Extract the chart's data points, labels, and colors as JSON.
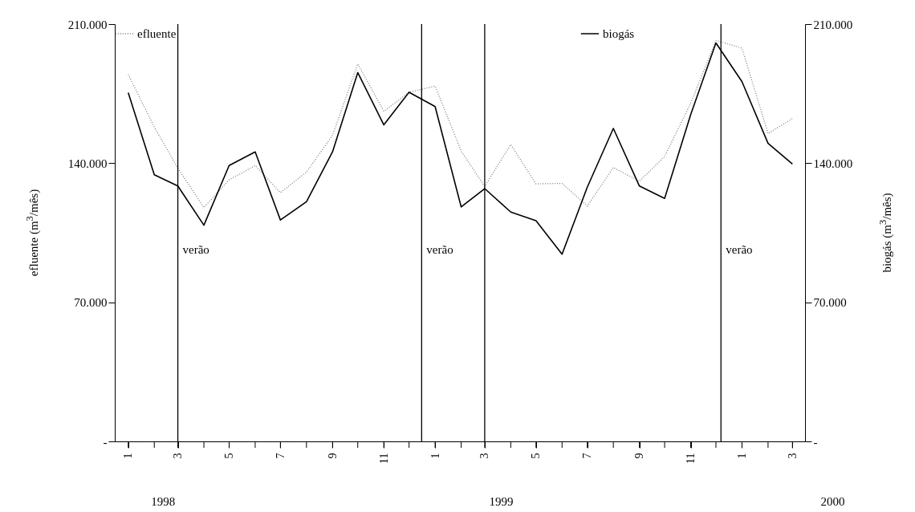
{
  "chart_data": {
    "type": "line",
    "ylabel": "efluente (m$^{3}$/mês)",
    "y2label": "biogás (m$^{3}$/mês)",
    "x": [
      "1998-01",
      "1998-02",
      "1998-03",
      "1998-04",
      "1998-05",
      "1998-06",
      "1998-07",
      "1998-08",
      "1998-09",
      "1998-10",
      "1998-11",
      "1998-12",
      "1999-01",
      "1999-02",
      "1999-03",
      "1999-04",
      "1999-05",
      "1999-06",
      "1999-07",
      "1999-08",
      "1999-09",
      "1999-10",
      "1999-11",
      "1999-12",
      "2000-01",
      "2000-02",
      "2000-03"
    ],
    "xlim": [
      "1997-12-16",
      "2000-03-16"
    ],
    "xticks": [
      {
        "value": "1998-01",
        "label": "1"
      },
      {
        "value": "1998-02",
        "label": null
      },
      {
        "value": "1998-03",
        "label": "3"
      },
      {
        "value": "1998-04",
        "label": null
      },
      {
        "value": "1998-05",
        "label": "5"
      },
      {
        "value": "1998-06",
        "label": null
      },
      {
        "value": "1998-07",
        "label": "7"
      },
      {
        "value": "1998-08",
        "label": null
      },
      {
        "value": "1998-09",
        "label": "9"
      },
      {
        "value": "1998-10",
        "label": null
      },
      {
        "value": "1998-11",
        "label": "11"
      },
      {
        "value": "1998-12",
        "label": null
      },
      {
        "value": "1999-01",
        "label": "1"
      },
      {
        "value": "1999-02",
        "label": null
      },
      {
        "value": "1999-03",
        "label": "3"
      },
      {
        "value": "1999-04",
        "label": null
      },
      {
        "value": "1999-05",
        "label": "5"
      },
      {
        "value": "1999-06",
        "label": null
      },
      {
        "value": "1999-07",
        "label": "7"
      },
      {
        "value": "1999-08",
        "label": null
      },
      {
        "value": "1999-09",
        "label": "9"
      },
      {
        "value": "1999-10",
        "label": null
      },
      {
        "value": "1999-11",
        "label": "11"
      },
      {
        "value": "1999-12",
        "label": null
      },
      {
        "value": "2000-01",
        "label": "1"
      },
      {
        "value": "2000-02",
        "label": null
      },
      {
        "value": "2000-03",
        "label": "3"
      }
    ],
    "ylim": [
      0,
      210000
    ],
    "yticks": [
      {
        "value": 0,
        "label": "-"
      },
      {
        "value": 70000,
        "label": "70.000"
      },
      {
        "value": 140000,
        "label": "140.000"
      },
      {
        "value": 210000,
        "label": "210.000"
      }
    ],
    "y2lim": [
      0,
      210000
    ],
    "y2ticks": [
      {
        "value": 0,
        "label": "-"
      },
      {
        "value": 70000,
        "label": "70.000"
      },
      {
        "value": 140000,
        "label": "140.000"
      },
      {
        "value": 210000,
        "label": "210.000"
      }
    ],
    "series": [
      {
        "name": "efluente",
        "color": "#777777",
        "line_style": "dotted",
        "values": [
          184600,
          158200,
          137500,
          117700,
          131600,
          138800,
          125200,
          135500,
          154000,
          190000,
          166100,
          175700,
          178800,
          146100,
          128300,
          149400,
          129600,
          129800,
          118400,
          137800,
          130900,
          143400,
          170200,
          201800,
          197900,
          154900,
          162500
        ]
      },
      {
        "name": "biogás",
        "color": "#000000",
        "line_style": "solid",
        "axis": "y2",
        "values": [
          175500,
          134200,
          128500,
          108800,
          138800,
          145700,
          111400,
          120600,
          145700,
          185600,
          159300,
          175700,
          168500,
          118000,
          127200,
          115400,
          111100,
          94200,
          127900,
          157500,
          128500,
          122300,
          164500,
          200500,
          181000,
          150000,
          139600
        ]
      }
    ],
    "ref_lines": [
      {
        "axis": "x",
        "value": "1998-03",
        "color": "#000000",
        "label": "verão"
      },
      {
        "axis": "x",
        "value": "1998-12-16",
        "color": "#000000",
        "label": "verão"
      },
      {
        "axis": "x",
        "value": "1999-03",
        "color": "#000000"
      },
      {
        "axis": "x",
        "value": "1999-12-07",
        "color": "#000000",
        "label": "verão"
      }
    ],
    "annotations": [
      "1998",
      "1999",
      "2000"
    ],
    "legend": "top"
  }
}
